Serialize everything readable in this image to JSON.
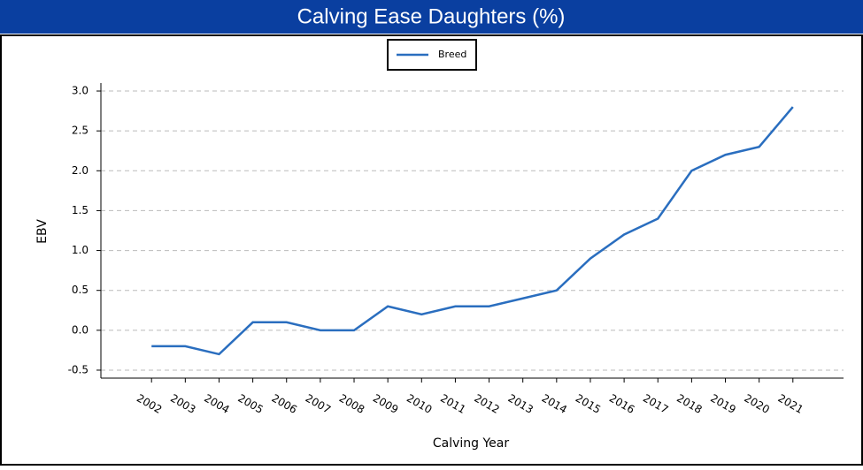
{
  "chart_data": {
    "type": "line",
    "title": "Calving Ease Daughters (%)",
    "x_label": "Calving Year",
    "y_label": "EBV",
    "x": [
      2002,
      2003,
      2004,
      2005,
      2006,
      2007,
      2008,
      2009,
      2010,
      2011,
      2012,
      2013,
      2014,
      2015,
      2016,
      2017,
      2018,
      2019,
      2020,
      2021
    ],
    "series": [
      {
        "name": "Breed",
        "color": "#2a6ebf",
        "values": [
          -0.2,
          -0.2,
          -0.3,
          0.1,
          0.1,
          0.0,
          0.0,
          0.3,
          0.2,
          0.3,
          0.3,
          0.4,
          0.5,
          0.9,
          1.2,
          1.4,
          2.0,
          2.2,
          2.3,
          2.8
        ]
      }
    ],
    "xlim": [
      2000.5,
      2022.5
    ],
    "xticks": [
      2002,
      2003,
      2004,
      2005,
      2006,
      2007,
      2008,
      2009,
      2010,
      2011,
      2012,
      2013,
      2014,
      2015,
      2016,
      2017,
      2018,
      2019,
      2020,
      2021
    ],
    "ylim": [
      -0.6,
      3.1
    ],
    "yticks": [
      -0.5,
      {
        "value": 0,
        "label": "0.0"
      },
      0.5,
      {
        "value": 1,
        "label": "1.0"
      },
      1.5,
      {
        "value": 2,
        "label": "2.0"
      },
      2.5,
      {
        "value": 3,
        "label": "3.0"
      }
    ],
    "grid": true,
    "legend": "top"
  }
}
